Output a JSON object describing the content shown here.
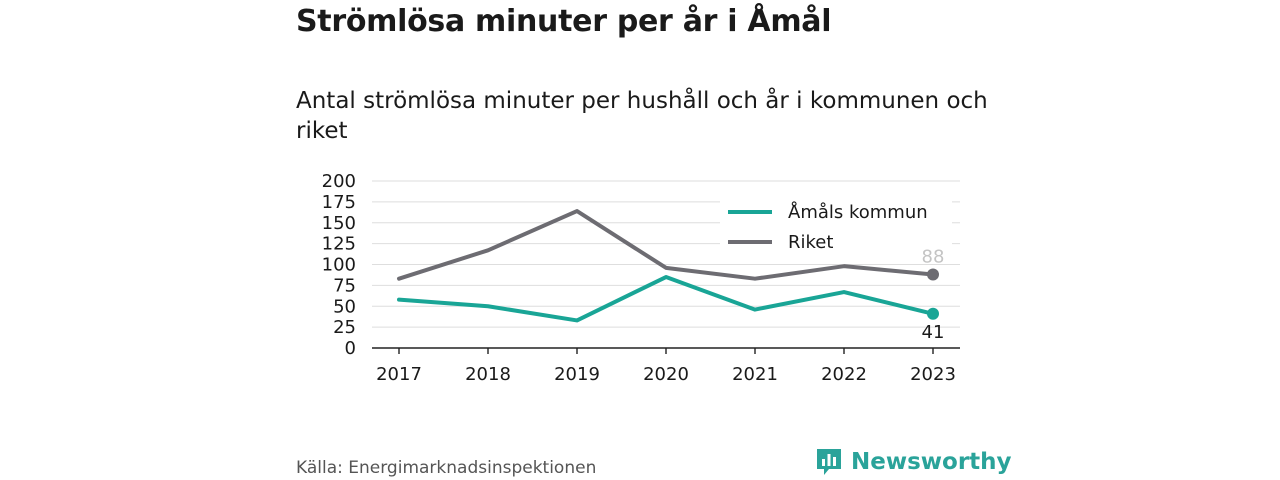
{
  "header": {
    "title": "Strömlösa minuter per år i Åmål",
    "subtitle": "Antal strömlösa minuter per hushåll och år i kommunen och riket"
  },
  "footer": {
    "source": "Källa: Energimarknadsinspektionen",
    "brand": "Newsworthy",
    "brand_color": "#2aa39a"
  },
  "chart_data": {
    "type": "line",
    "x": [
      "2017",
      "2018",
      "2019",
      "2020",
      "2021",
      "2022",
      "2023"
    ],
    "yticks": [
      0,
      25,
      50,
      75,
      100,
      125,
      150,
      175,
      200
    ],
    "ylim": [
      0,
      200
    ],
    "grid": true,
    "legend_position": "top-right",
    "series": [
      {
        "name": "Åmåls kommun",
        "color": "#19a596",
        "values": [
          58,
          50,
          33,
          85,
          46,
          67,
          41
        ],
        "end_label": "41"
      },
      {
        "name": "Riket",
        "color": "#6d6c72",
        "values": [
          83,
          117,
          164,
          96,
          83,
          98,
          88
        ],
        "end_label": "88"
      }
    ]
  }
}
